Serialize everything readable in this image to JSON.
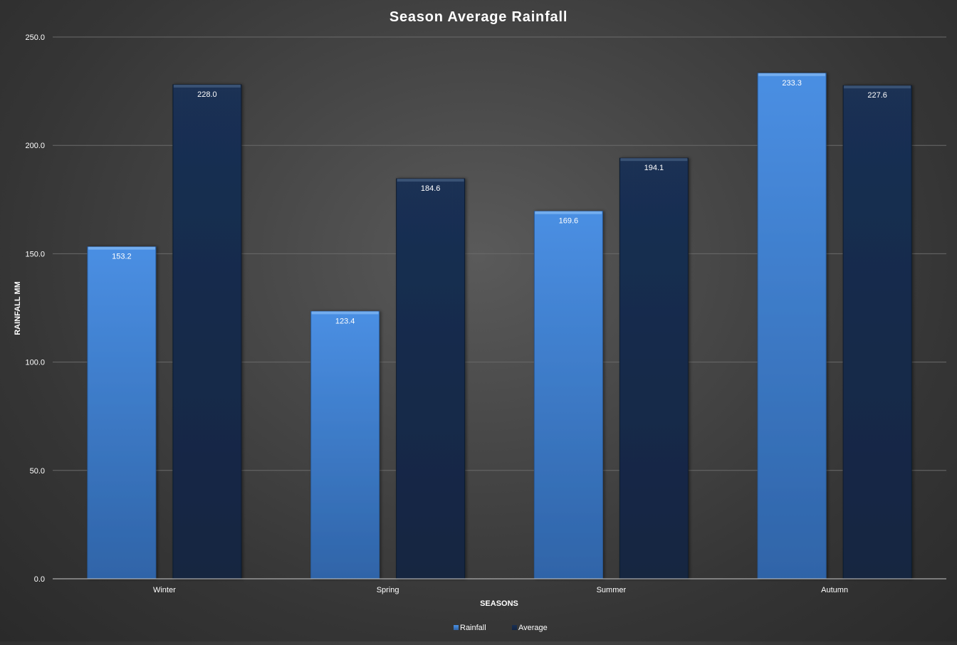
{
  "chart_data": {
    "type": "bar",
    "title": "Season Average Rainfall",
    "xlabel": "SEASONS",
    "ylabel": "RAINFALL MM",
    "categories": [
      "Winter",
      "Spring",
      "Summer",
      "Autumn"
    ],
    "series": [
      {
        "name": "Rainfall",
        "values": [
          153.2,
          123.4,
          169.6,
          233.3
        ],
        "color": "#3f82d4"
      },
      {
        "name": "Average",
        "values": [
          228.0,
          184.6,
          194.1,
          227.6
        ],
        "color": "#162a4b"
      }
    ],
    "ylim": [
      0,
      250
    ],
    "yticks": [
      0,
      50,
      100,
      150,
      200,
      250
    ],
    "ytick_labels": [
      "0.0",
      "50.0",
      "100.0",
      "150.0",
      "200.0",
      "250.0"
    ],
    "data_labels": [
      [
        "153.2",
        "123.4",
        "169.6",
        "233.3"
      ],
      [
        "228.0",
        "184.6",
        "194.1",
        "227.6"
      ]
    ],
    "grid": true,
    "legend_position": "bottom",
    "colors": {
      "text": "#ffffff",
      "gridline": "#6a6a6a",
      "axis": "#bdbdbd"
    }
  }
}
